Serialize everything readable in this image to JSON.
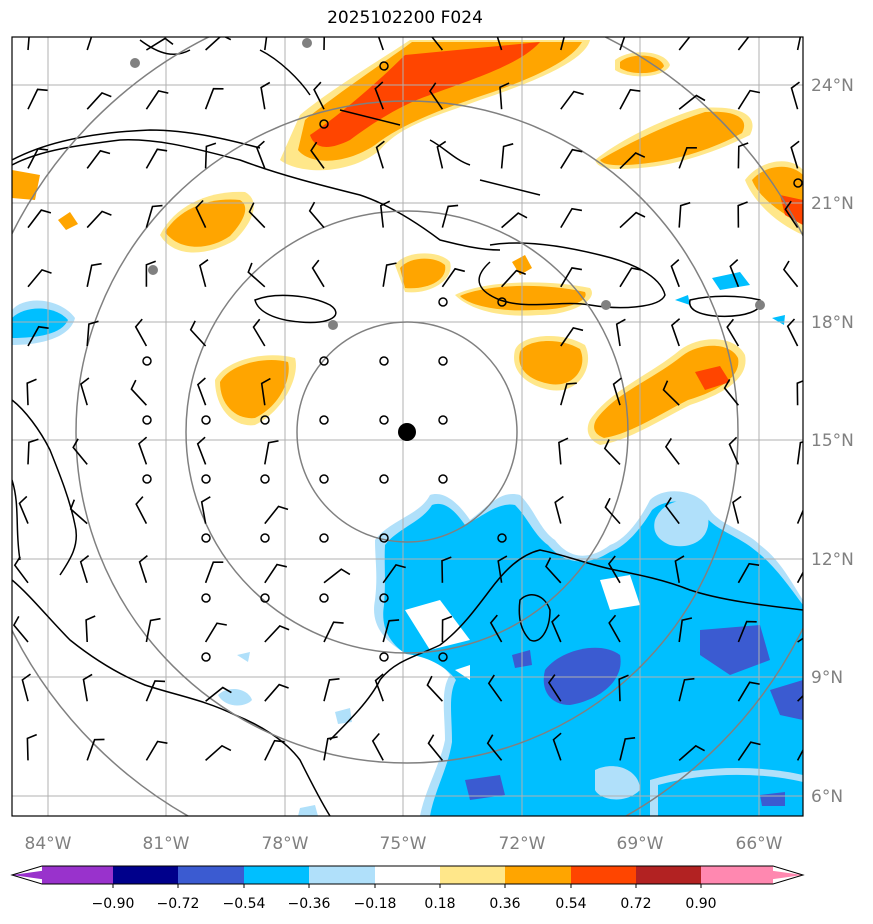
{
  "title": "2025102200 F024",
  "lat_labels": [
    "24°N",
    "21°N",
    "18°N",
    "15°N",
    "12°N",
    "9°N",
    "6°N"
  ],
  "lon_labels": [
    "84°W",
    "81°W",
    "78°W",
    "75°W",
    "72°W",
    "69°W",
    "66°W"
  ],
  "colorbar": {
    "tick_labels": [
      "−0.90",
      "−0.72",
      "−0.54",
      "−0.36",
      "−0.18",
      "0.18",
      "0.36",
      "0.54",
      "0.72",
      "0.90"
    ],
    "colors": [
      "#9932cc",
      "#00008b",
      "#3b5bd1",
      "#00bfff",
      "#b0e0fa",
      "#ffffff",
      "#ffe78a",
      "#ffa500",
      "#ff4500",
      "#b22222",
      "#ff88b0"
    ]
  },
  "center_marker": "storm-center-dot",
  "range_rings": 4
}
